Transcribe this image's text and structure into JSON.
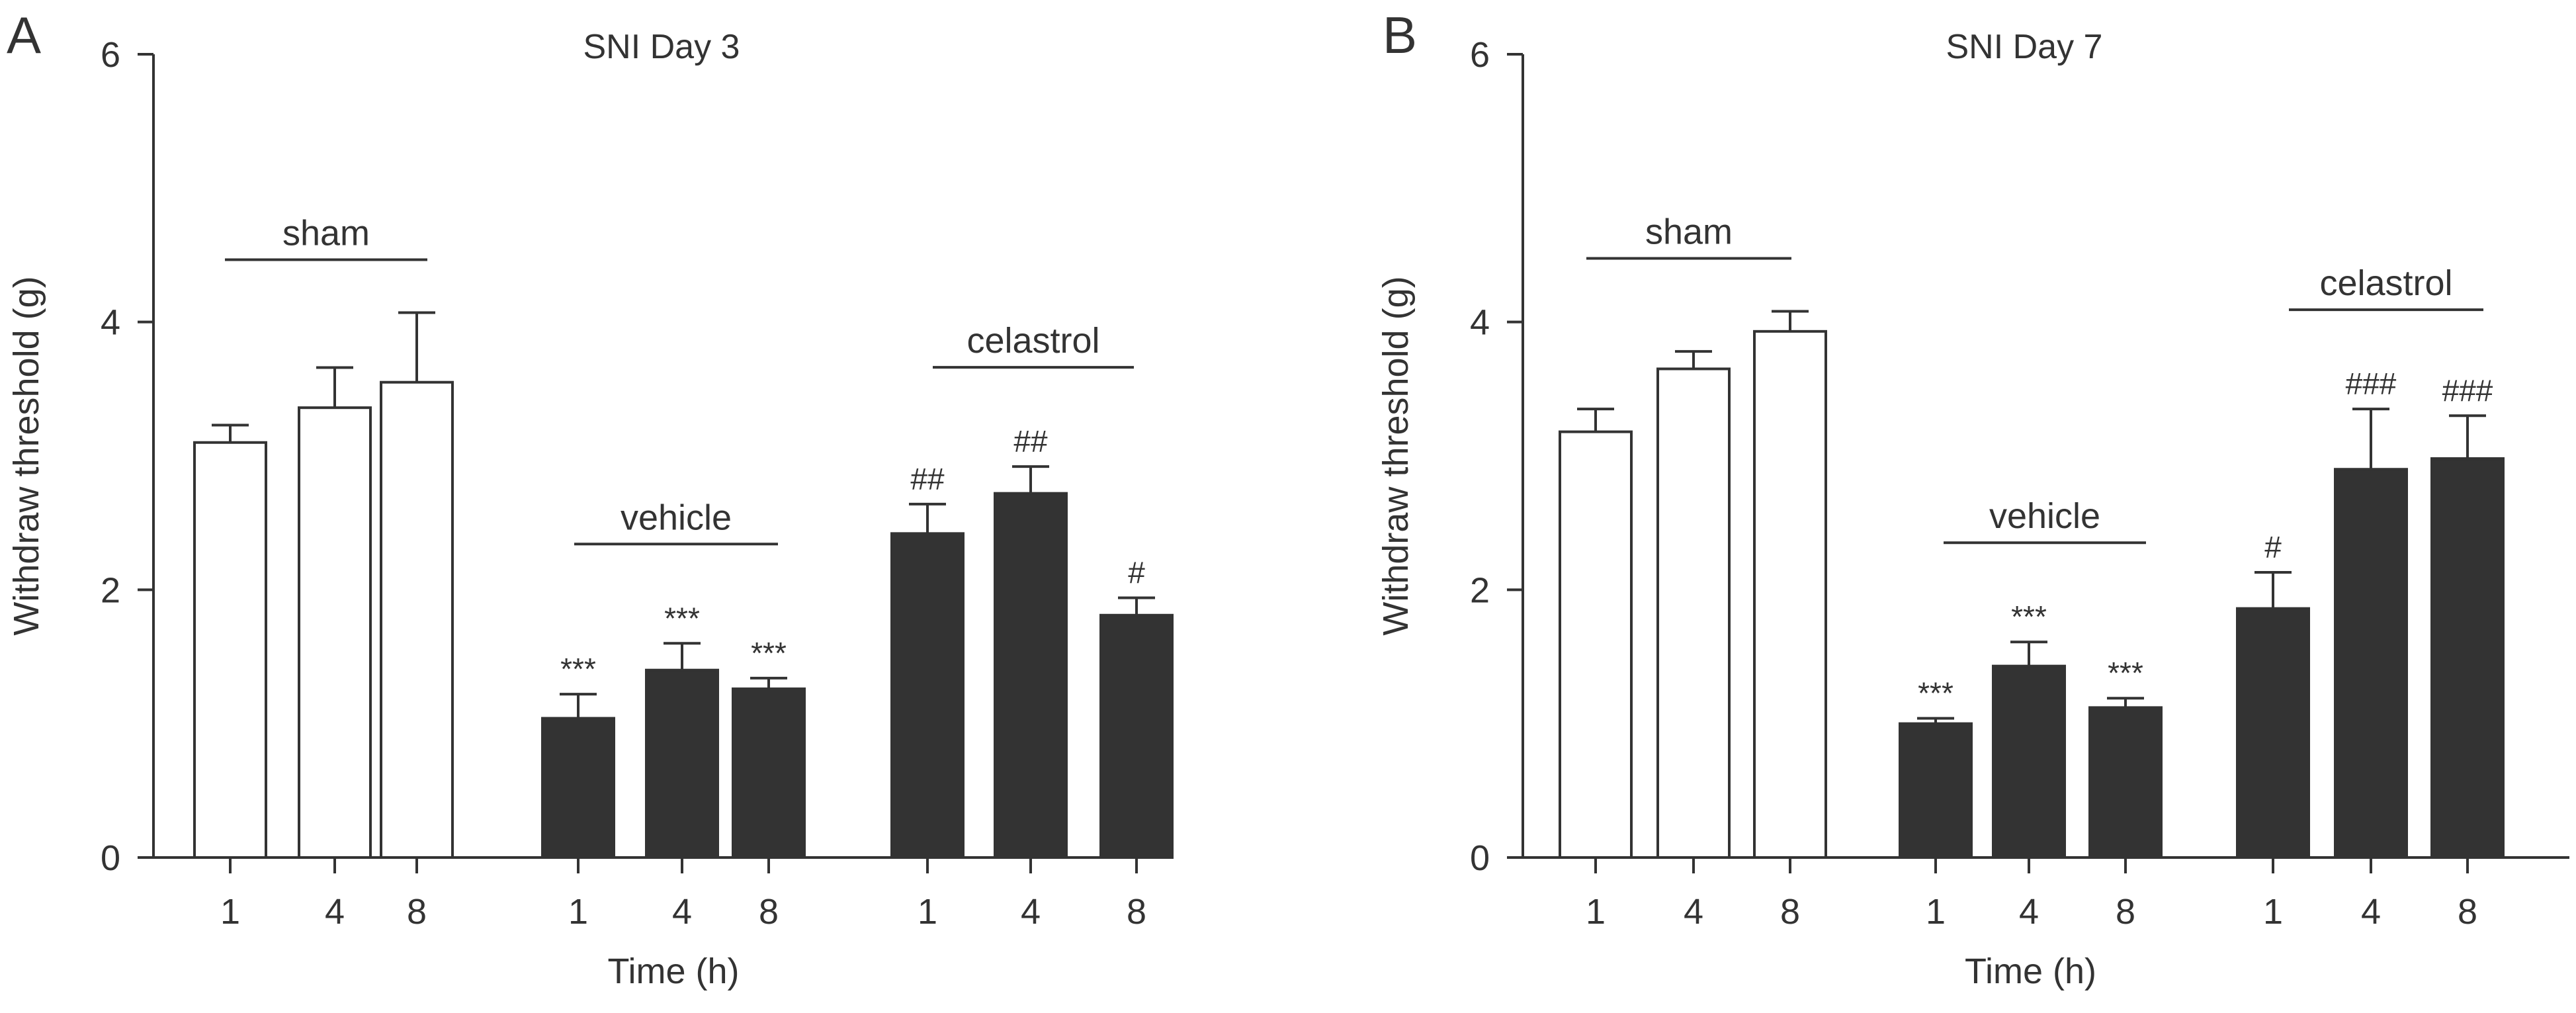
{
  "figure": {
    "panels": [
      {
        "letter": "A"
      },
      {
        "letter": "B"
      }
    ]
  },
  "chart_data": [
    {
      "type": "bar",
      "panel": "A",
      "title": "SNI Day 3",
      "xlabel": "Time (h)",
      "ylabel": "Withdraw threshold (g)",
      "ylim": [
        0,
        6
      ],
      "yticks": [
        0,
        2,
        4,
        6
      ],
      "groups": [
        {
          "name": "sham",
          "fill": "open",
          "categories": [
            "1",
            "4",
            "8"
          ],
          "values": [
            3.1,
            3.36,
            3.55
          ],
          "errors": [
            0.13,
            0.3,
            0.52
          ],
          "significance": [
            "",
            "",
            ""
          ]
        },
        {
          "name": "vehicle",
          "fill": "filled",
          "categories": [
            "1",
            "4",
            "8"
          ],
          "values": [
            1.04,
            1.4,
            1.26
          ],
          "errors": [
            0.18,
            0.2,
            0.08
          ],
          "significance": [
            "***",
            "***",
            "***"
          ]
        },
        {
          "name": "celastrol",
          "fill": "filled",
          "categories": [
            "1",
            "4",
            "8"
          ],
          "values": [
            2.42,
            2.72,
            1.81
          ],
          "errors": [
            0.22,
            0.2,
            0.13
          ],
          "significance": [
            "##",
            "##",
            "#"
          ]
        }
      ]
    },
    {
      "type": "bar",
      "panel": "B",
      "title": "SNI Day 7",
      "xlabel": "Time (h)",
      "ylabel": "Withdraw threshold (g)",
      "ylim": [
        0,
        6
      ],
      "yticks": [
        0,
        2,
        4,
        6
      ],
      "groups": [
        {
          "name": "sham",
          "fill": "open",
          "categories": [
            "1",
            "4",
            "8"
          ],
          "values": [
            3.18,
            3.65,
            3.93
          ],
          "errors": [
            0.17,
            0.13,
            0.15
          ],
          "significance": [
            "",
            "",
            ""
          ]
        },
        {
          "name": "vehicle",
          "fill": "filled",
          "categories": [
            "1",
            "4",
            "8"
          ],
          "values": [
            1.0,
            1.43,
            1.12
          ],
          "errors": [
            0.04,
            0.18,
            0.07
          ],
          "significance": [
            "***",
            "***",
            "***"
          ]
        },
        {
          "name": "celastrol",
          "fill": "filled",
          "categories": [
            "1",
            "4",
            "8"
          ],
          "values": [
            1.86,
            2.9,
            2.98
          ],
          "errors": [
            0.27,
            0.45,
            0.32
          ],
          "significance": [
            "#",
            "###",
            "###"
          ]
        }
      ]
    }
  ]
}
